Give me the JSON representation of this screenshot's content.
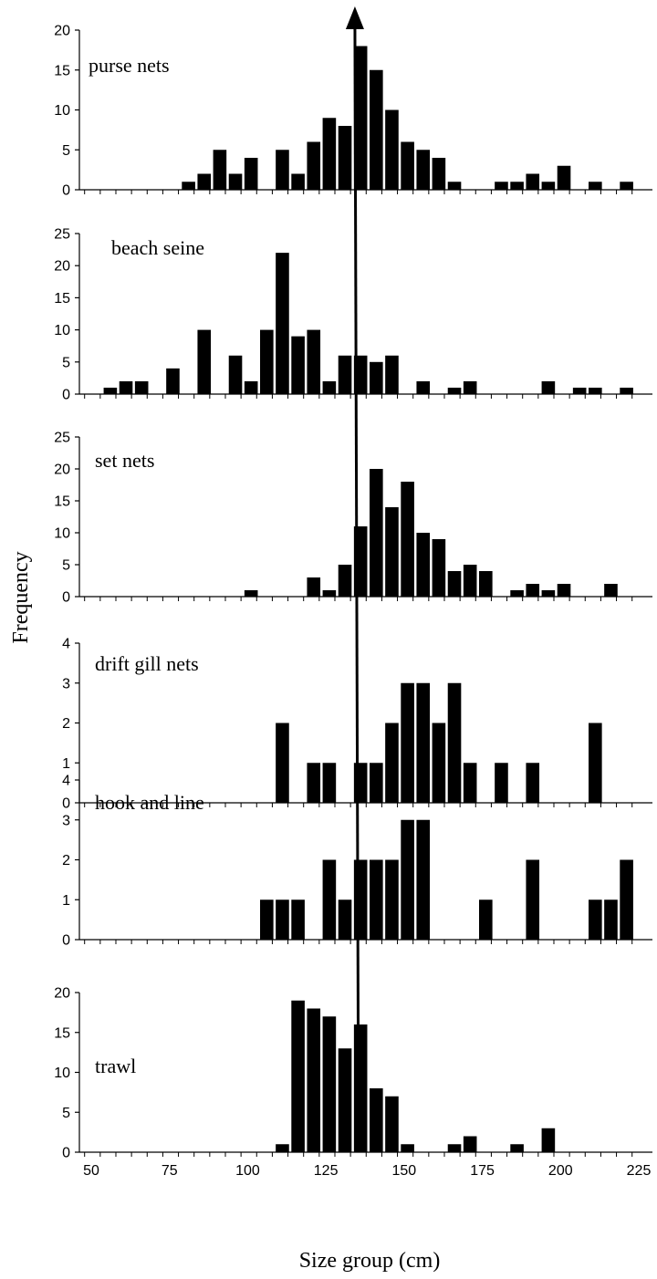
{
  "ylabel": "Frequency",
  "xlabel": "Size group (cm)",
  "x_ticks": [
    "50",
    "75",
    "100",
    "125",
    "150",
    "175",
    "200",
    "225"
  ],
  "colors": {
    "bar": "#000000",
    "axis": "#000000",
    "background": "#ffffff"
  },
  "reference_line_x": 135,
  "chart_data": [
    {
      "type": "bar",
      "title": "purse nets",
      "xlabel": "Size group (cm)",
      "ylabel": "Frequency",
      "xlim": [
        50,
        225
      ],
      "ylim": [
        0,
        20
      ],
      "yticks": [
        "0",
        "5",
        "10",
        "15",
        "20"
      ],
      "x": [
        85,
        90,
        95,
        100,
        105,
        115,
        120,
        125,
        130,
        135,
        140,
        145,
        150,
        155,
        160,
        165,
        170,
        175,
        185,
        190,
        195,
        200,
        205,
        215,
        225
      ],
      "values": [
        1,
        2,
        5,
        2,
        4,
        5,
        2,
        6,
        9,
        8,
        18,
        15,
        10,
        6,
        5,
        4,
        1,
        0,
        1,
        1,
        2,
        1,
        3,
        1,
        1
      ]
    },
    {
      "type": "bar",
      "title": "beach seine",
      "xlabel": "Size group (cm)",
      "ylabel": "Frequency",
      "xlim": [
        50,
        225
      ],
      "ylim": [
        0,
        25
      ],
      "yticks": [
        "0",
        "5",
        "10",
        "15",
        "20",
        "25"
      ],
      "x": [
        60,
        65,
        70,
        80,
        90,
        100,
        105,
        110,
        115,
        120,
        125,
        130,
        135,
        140,
        145,
        150,
        160,
        170,
        175,
        200,
        210,
        215,
        225
      ],
      "values": [
        1,
        2,
        2,
        4,
        10,
        6,
        2,
        10,
        22,
        9,
        10,
        2,
        6,
        6,
        5,
        6,
        2,
        1,
        2,
        2,
        1,
        1,
        1
      ]
    },
    {
      "type": "bar",
      "title": "set nets",
      "xlabel": "Size group (cm)",
      "ylabel": "Frequency",
      "xlim": [
        50,
        225
      ],
      "ylim": [
        0,
        25
      ],
      "yticks": [
        "0",
        "5",
        "10",
        "15",
        "20",
        "25"
      ],
      "x": [
        105,
        125,
        130,
        135,
        140,
        145,
        150,
        155,
        160,
        165,
        170,
        175,
        180,
        190,
        195,
        200,
        205,
        220
      ],
      "values": [
        1,
        3,
        1,
        5,
        11,
        20,
        14,
        18,
        10,
        9,
        4,
        5,
        4,
        1,
        2,
        1,
        2,
        2
      ]
    },
    {
      "type": "bar",
      "title": "drift gill nets",
      "xlabel": "Size group (cm)",
      "ylabel": "Frequency",
      "xlim": [
        50,
        225
      ],
      "ylim": [
        0,
        4
      ],
      "yticks": [
        "0",
        "1",
        "2",
        "3",
        "4"
      ],
      "x": [
        115,
        125,
        130,
        140,
        145,
        150,
        155,
        160,
        165,
        170,
        175,
        185,
        195,
        215
      ],
      "values": [
        2,
        1,
        1,
        1,
        1,
        2,
        3,
        3,
        2,
        3,
        1,
        1,
        1,
        2
      ]
    },
    {
      "type": "bar",
      "title": "hook and line",
      "xlabel": "Size group (cm)",
      "ylabel": "Frequency",
      "xlim": [
        50,
        225
      ],
      "ylim": [
        0,
        4
      ],
      "yticks": [
        "0",
        "1",
        "2",
        "3",
        "4"
      ],
      "x": [
        110,
        115,
        120,
        130,
        135,
        140,
        145,
        150,
        155,
        160,
        180,
        195,
        215,
        220,
        225
      ],
      "values": [
        1,
        1,
        1,
        2,
        1,
        2,
        2,
        2,
        3,
        3,
        1,
        2,
        1,
        1,
        2
      ]
    },
    {
      "type": "bar",
      "title": "trawl",
      "xlabel": "Size group (cm)",
      "ylabel": "Frequency",
      "xlim": [
        50,
        225
      ],
      "ylim": [
        0,
        20
      ],
      "yticks": [
        "0",
        "5",
        "10",
        "15",
        "20"
      ],
      "x": [
        115,
        120,
        125,
        130,
        135,
        140,
        145,
        150,
        155,
        170,
        175,
        190,
        200
      ],
      "values": [
        1,
        19,
        18,
        17,
        13,
        16,
        8,
        7,
        1,
        1,
        2,
        1,
        3
      ]
    }
  ]
}
